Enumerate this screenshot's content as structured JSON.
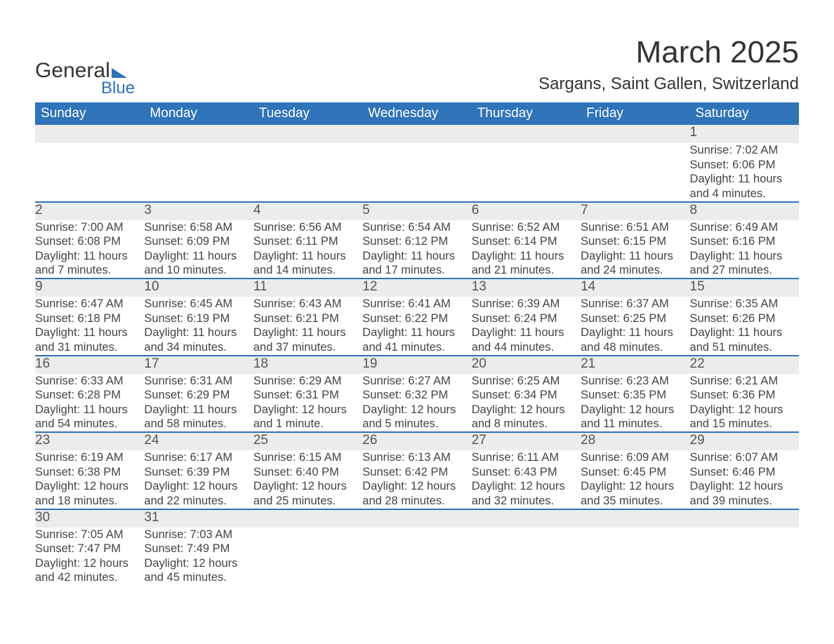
{
  "logo": {
    "word1": "General",
    "word2": "Blue"
  },
  "title": "March 2025",
  "location": "Sargans, Saint Gallen, Switzerland",
  "colors": {
    "header_bg": "#2f73b8",
    "header_fg": "#ffffff",
    "daynum_bg": "#ececec",
    "row_divider": "#2f73b8",
    "text": "#333333",
    "logo_accent": "#2f73b8"
  },
  "day_headers": [
    "Sunday",
    "Monday",
    "Tuesday",
    "Wednesday",
    "Thursday",
    "Friday",
    "Saturday"
  ],
  "weeks": [
    [
      null,
      null,
      null,
      null,
      null,
      null,
      {
        "n": "1",
        "sunrise": "Sunrise: 7:02 AM",
        "sunset": "Sunset: 6:06 PM",
        "d1": "Daylight: 11 hours",
        "d2": "and 4 minutes."
      }
    ],
    [
      {
        "n": "2",
        "sunrise": "Sunrise: 7:00 AM",
        "sunset": "Sunset: 6:08 PM",
        "d1": "Daylight: 11 hours",
        "d2": "and 7 minutes."
      },
      {
        "n": "3",
        "sunrise": "Sunrise: 6:58 AM",
        "sunset": "Sunset: 6:09 PM",
        "d1": "Daylight: 11 hours",
        "d2": "and 10 minutes."
      },
      {
        "n": "4",
        "sunrise": "Sunrise: 6:56 AM",
        "sunset": "Sunset: 6:11 PM",
        "d1": "Daylight: 11 hours",
        "d2": "and 14 minutes."
      },
      {
        "n": "5",
        "sunrise": "Sunrise: 6:54 AM",
        "sunset": "Sunset: 6:12 PM",
        "d1": "Daylight: 11 hours",
        "d2": "and 17 minutes."
      },
      {
        "n": "6",
        "sunrise": "Sunrise: 6:52 AM",
        "sunset": "Sunset: 6:14 PM",
        "d1": "Daylight: 11 hours",
        "d2": "and 21 minutes."
      },
      {
        "n": "7",
        "sunrise": "Sunrise: 6:51 AM",
        "sunset": "Sunset: 6:15 PM",
        "d1": "Daylight: 11 hours",
        "d2": "and 24 minutes."
      },
      {
        "n": "8",
        "sunrise": "Sunrise: 6:49 AM",
        "sunset": "Sunset: 6:16 PM",
        "d1": "Daylight: 11 hours",
        "d2": "and 27 minutes."
      }
    ],
    [
      {
        "n": "9",
        "sunrise": "Sunrise: 6:47 AM",
        "sunset": "Sunset: 6:18 PM",
        "d1": "Daylight: 11 hours",
        "d2": "and 31 minutes."
      },
      {
        "n": "10",
        "sunrise": "Sunrise: 6:45 AM",
        "sunset": "Sunset: 6:19 PM",
        "d1": "Daylight: 11 hours",
        "d2": "and 34 minutes."
      },
      {
        "n": "11",
        "sunrise": "Sunrise: 6:43 AM",
        "sunset": "Sunset: 6:21 PM",
        "d1": "Daylight: 11 hours",
        "d2": "and 37 minutes."
      },
      {
        "n": "12",
        "sunrise": "Sunrise: 6:41 AM",
        "sunset": "Sunset: 6:22 PM",
        "d1": "Daylight: 11 hours",
        "d2": "and 41 minutes."
      },
      {
        "n": "13",
        "sunrise": "Sunrise: 6:39 AM",
        "sunset": "Sunset: 6:24 PM",
        "d1": "Daylight: 11 hours",
        "d2": "and 44 minutes."
      },
      {
        "n": "14",
        "sunrise": "Sunrise: 6:37 AM",
        "sunset": "Sunset: 6:25 PM",
        "d1": "Daylight: 11 hours",
        "d2": "and 48 minutes."
      },
      {
        "n": "15",
        "sunrise": "Sunrise: 6:35 AM",
        "sunset": "Sunset: 6:26 PM",
        "d1": "Daylight: 11 hours",
        "d2": "and 51 minutes."
      }
    ],
    [
      {
        "n": "16",
        "sunrise": "Sunrise: 6:33 AM",
        "sunset": "Sunset: 6:28 PM",
        "d1": "Daylight: 11 hours",
        "d2": "and 54 minutes."
      },
      {
        "n": "17",
        "sunrise": "Sunrise: 6:31 AM",
        "sunset": "Sunset: 6:29 PM",
        "d1": "Daylight: 11 hours",
        "d2": "and 58 minutes."
      },
      {
        "n": "18",
        "sunrise": "Sunrise: 6:29 AM",
        "sunset": "Sunset: 6:31 PM",
        "d1": "Daylight: 12 hours",
        "d2": "and 1 minute."
      },
      {
        "n": "19",
        "sunrise": "Sunrise: 6:27 AM",
        "sunset": "Sunset: 6:32 PM",
        "d1": "Daylight: 12 hours",
        "d2": "and 5 minutes."
      },
      {
        "n": "20",
        "sunrise": "Sunrise: 6:25 AM",
        "sunset": "Sunset: 6:34 PM",
        "d1": "Daylight: 12 hours",
        "d2": "and 8 minutes."
      },
      {
        "n": "21",
        "sunrise": "Sunrise: 6:23 AM",
        "sunset": "Sunset: 6:35 PM",
        "d1": "Daylight: 12 hours",
        "d2": "and 11 minutes."
      },
      {
        "n": "22",
        "sunrise": "Sunrise: 6:21 AM",
        "sunset": "Sunset: 6:36 PM",
        "d1": "Daylight: 12 hours",
        "d2": "and 15 minutes."
      }
    ],
    [
      {
        "n": "23",
        "sunrise": "Sunrise: 6:19 AM",
        "sunset": "Sunset: 6:38 PM",
        "d1": "Daylight: 12 hours",
        "d2": "and 18 minutes."
      },
      {
        "n": "24",
        "sunrise": "Sunrise: 6:17 AM",
        "sunset": "Sunset: 6:39 PM",
        "d1": "Daylight: 12 hours",
        "d2": "and 22 minutes."
      },
      {
        "n": "25",
        "sunrise": "Sunrise: 6:15 AM",
        "sunset": "Sunset: 6:40 PM",
        "d1": "Daylight: 12 hours",
        "d2": "and 25 minutes."
      },
      {
        "n": "26",
        "sunrise": "Sunrise: 6:13 AM",
        "sunset": "Sunset: 6:42 PM",
        "d1": "Daylight: 12 hours",
        "d2": "and 28 minutes."
      },
      {
        "n": "27",
        "sunrise": "Sunrise: 6:11 AM",
        "sunset": "Sunset: 6:43 PM",
        "d1": "Daylight: 12 hours",
        "d2": "and 32 minutes."
      },
      {
        "n": "28",
        "sunrise": "Sunrise: 6:09 AM",
        "sunset": "Sunset: 6:45 PM",
        "d1": "Daylight: 12 hours",
        "d2": "and 35 minutes."
      },
      {
        "n": "29",
        "sunrise": "Sunrise: 6:07 AM",
        "sunset": "Sunset: 6:46 PM",
        "d1": "Daylight: 12 hours",
        "d2": "and 39 minutes."
      }
    ],
    [
      {
        "n": "30",
        "sunrise": "Sunrise: 7:05 AM",
        "sunset": "Sunset: 7:47 PM",
        "d1": "Daylight: 12 hours",
        "d2": "and 42 minutes."
      },
      {
        "n": "31",
        "sunrise": "Sunrise: 7:03 AM",
        "sunset": "Sunset: 7:49 PM",
        "d1": "Daylight: 12 hours",
        "d2": "and 45 minutes."
      },
      null,
      null,
      null,
      null,
      null
    ]
  ]
}
